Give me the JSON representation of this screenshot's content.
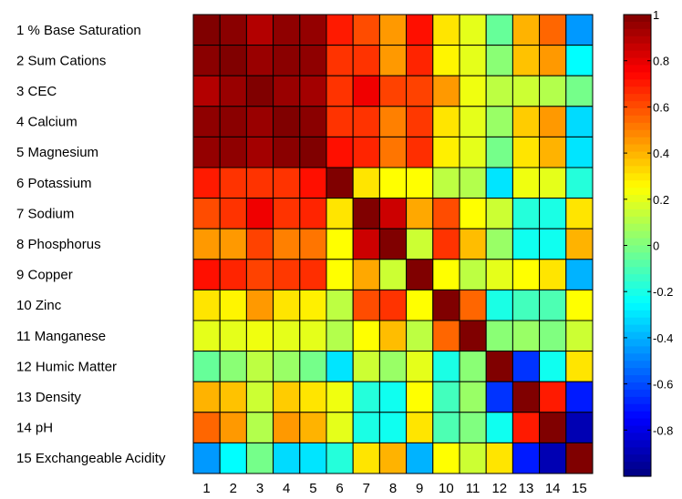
{
  "chart_data": {
    "type": "heatmap",
    "title": "",
    "xlabel": "",
    "ylabel": "",
    "row_labels": [
      "1  % Base Saturation",
      "2  Sum Cations",
      "3  CEC",
      "4  Calcium",
      "5  Magnesium",
      "6  Potassium",
      "7  Sodium",
      "8  Phosphorus",
      "9  Copper",
      "10  Zinc",
      "11  Manganese",
      "12  Humic Matter",
      "13  Density",
      "14  pH",
      "15  Exchangeable Acidity"
    ],
    "col_labels": [
      "1",
      "2",
      "3",
      "4",
      "5",
      "6",
      "7",
      "8",
      "9",
      "10",
      "11",
      "12",
      "13",
      "14",
      "15"
    ],
    "colorbar": {
      "range": [
        -1,
        1
      ],
      "ticks": [
        "1",
        "0.8",
        "0.6",
        "0.4",
        "0.2",
        "0",
        "-0.2",
        "-0.4",
        "-0.6",
        "-0.8"
      ],
      "colormap": "jet"
    },
    "values": [
      [
        1.0,
        0.98,
        0.9,
        0.97,
        0.96,
        0.7,
        0.6,
        0.45,
        0.72,
        0.3,
        0.2,
        -0.05,
        0.4,
        0.55,
        -0.45
      ],
      [
        0.98,
        1.0,
        0.95,
        0.98,
        0.97,
        0.65,
        0.65,
        0.45,
        0.68,
        0.27,
        0.2,
        0.02,
        0.37,
        0.45,
        -0.25
      ],
      [
        0.9,
        0.95,
        1.0,
        0.95,
        0.93,
        0.65,
        0.78,
        0.62,
        0.62,
        0.45,
        0.22,
        0.12,
        0.15,
        0.1,
        -0.02
      ],
      [
        0.97,
        0.98,
        0.95,
        1.0,
        0.98,
        0.65,
        0.65,
        0.5,
        0.64,
        0.3,
        0.2,
        0.05,
        0.35,
        0.45,
        -0.32
      ],
      [
        0.96,
        0.97,
        0.93,
        0.98,
        1.0,
        0.72,
        0.68,
        0.52,
        0.66,
        0.28,
        0.2,
        -0.02,
        0.3,
        0.4,
        -0.3
      ],
      [
        0.7,
        0.65,
        0.65,
        0.65,
        0.72,
        1.0,
        0.3,
        0.25,
        0.25,
        0.12,
        0.1,
        -0.3,
        0.22,
        0.2,
        -0.18
      ],
      [
        0.6,
        0.65,
        0.78,
        0.65,
        0.68,
        0.3,
        1.0,
        0.85,
        0.42,
        0.6,
        0.25,
        0.15,
        -0.18,
        -0.2,
        0.3
      ],
      [
        0.45,
        0.45,
        0.62,
        0.5,
        0.52,
        0.25,
        0.85,
        1.0,
        0.15,
        0.65,
        0.38,
        0.05,
        -0.22,
        -0.22,
        0.4
      ],
      [
        0.72,
        0.68,
        0.62,
        0.64,
        0.66,
        0.25,
        0.42,
        0.15,
        1.0,
        0.25,
        0.12,
        0.2,
        0.25,
        0.3,
        -0.4
      ],
      [
        0.3,
        0.27,
        0.45,
        0.3,
        0.28,
        0.12,
        0.6,
        0.65,
        0.25,
        1.0,
        0.55,
        -0.2,
        -0.12,
        -0.1,
        0.25
      ],
      [
        0.2,
        0.2,
        0.22,
        0.2,
        0.2,
        0.1,
        0.25,
        0.38,
        0.12,
        0.55,
        1.0,
        0.02,
        0.05,
        0.0,
        0.15
      ],
      [
        -0.05,
        0.02,
        0.12,
        0.05,
        -0.02,
        -0.3,
        0.15,
        0.05,
        0.2,
        -0.2,
        0.02,
        1.0,
        -0.65,
        -0.22,
        0.3
      ],
      [
        0.4,
        0.37,
        0.15,
        0.35,
        0.3,
        0.22,
        -0.18,
        -0.22,
        0.25,
        -0.12,
        0.05,
        -0.65,
        1.0,
        0.7,
        -0.7
      ],
      [
        0.55,
        0.45,
        0.1,
        0.45,
        0.4,
        0.2,
        -0.2,
        -0.22,
        0.3,
        -0.1,
        0.0,
        -0.22,
        0.7,
        1.0,
        -0.9
      ],
      [
        -0.45,
        -0.25,
        -0.02,
        -0.32,
        -0.3,
        -0.18,
        0.3,
        0.4,
        -0.4,
        0.25,
        0.15,
        0.3,
        -0.7,
        -0.9,
        1.0
      ]
    ]
  }
}
